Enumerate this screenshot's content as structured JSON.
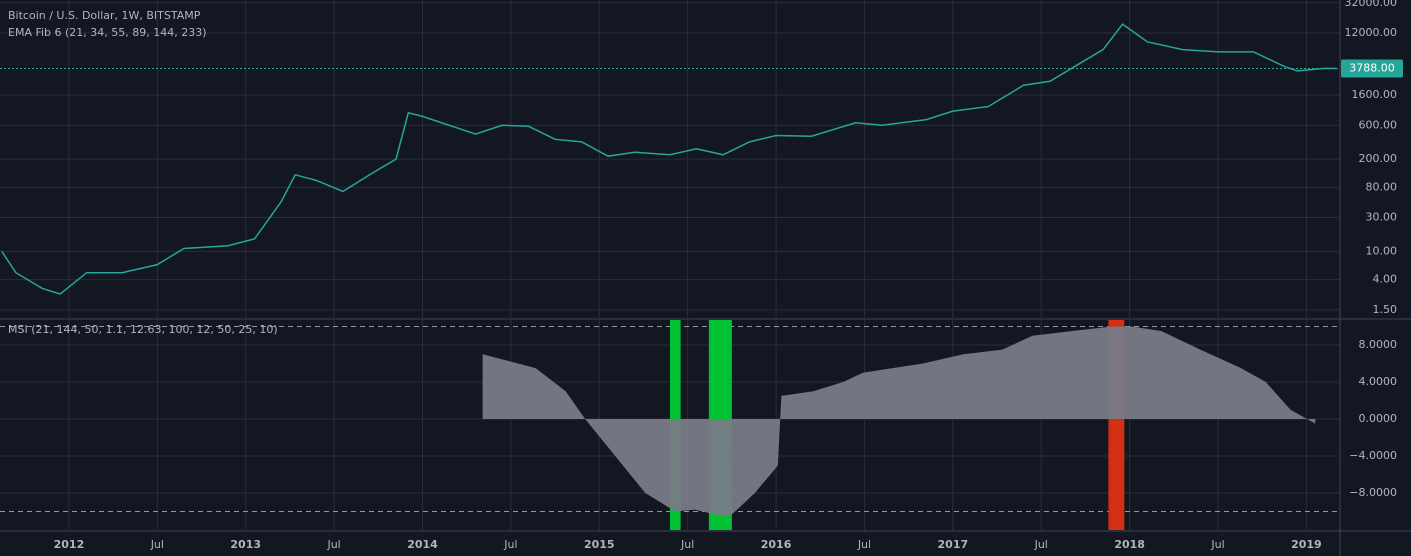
{
  "chart_data": [
    {
      "type": "line",
      "title": "Bitcoin / U.S. Dollar, 1W, BITSTAMP",
      "subtitle": "EMA Fib 6 (21, 34, 55, 89, 144, 233)",
      "log_scale": true,
      "grid": true,
      "xlim": [
        2011.61,
        2019.19
      ],
      "ylim": [
        1.15,
        35000
      ],
      "yticks": [
        {
          "value": 1.5,
          "label": "1.50"
        },
        {
          "value": 4,
          "label": "4.00"
        },
        {
          "value": 10,
          "label": "10.00"
        },
        {
          "value": 30,
          "label": "30.00"
        },
        {
          "value": 80,
          "label": "80.00"
        },
        {
          "value": 200,
          "label": "200.00"
        },
        {
          "value": 600,
          "label": "600.00"
        },
        {
          "value": 1600,
          "label": "1600.00"
        },
        {
          "value": 12000,
          "label": "12000.00"
        },
        {
          "value": 32000,
          "label": "32000.00"
        }
      ],
      "last_price": {
        "value": 3788,
        "label": "3788.00",
        "color": "#26a69a"
      },
      "series": [
        {
          "color": "#26a69a",
          "x": [
            2011.62,
            2011.7,
            2011.85,
            2011.95,
            2012.1,
            2012.3,
            2012.5,
            2012.65,
            2012.9,
            2013.05,
            2013.2,
            2013.28,
            2013.4,
            2013.55,
            2013.7,
            2013.85,
            2013.92,
            2014.0,
            2014.15,
            2014.3,
            2014.45,
            2014.6,
            2014.75,
            2014.9,
            2015.05,
            2015.2,
            2015.4,
            2015.55,
            2015.7,
            2015.85,
            2016.0,
            2016.2,
            2016.45,
            2016.6,
            2016.85,
            2017.0,
            2017.2,
            2017.4,
            2017.55,
            2017.7,
            2017.85,
            2017.96,
            2018.1,
            2018.3,
            2018.5,
            2018.7,
            2018.88,
            2018.95,
            2019.1,
            2019.17
          ],
          "values": [
            10,
            5,
            3,
            2.5,
            5,
            5,
            6.5,
            11,
            12,
            15,
            50,
            120,
            100,
            70,
            120,
            200,
            900,
            800,
            600,
            450,
            600,
            580,
            380,
            350,
            220,
            250,
            230,
            280,
            230,
            350,
            430,
            420,
            650,
            600,
            720,
            950,
            1100,
            2200,
            2500,
            4200,
            7000,
            16000,
            9000,
            7000,
            6500,
            6500,
            4000,
            3500,
            3800,
            3788
          ]
        }
      ]
    },
    {
      "type": "area",
      "title": "MSI (21, 144, 50, 1.1, 12.63, 100, 12, 50, 25, 10)",
      "grid": true,
      "xlim": [
        2011.61,
        2019.19
      ],
      "ylim": [
        -12,
        10.7
      ],
      "xticks": [
        2012,
        {
          "value": 2012.5,
          "label": "Jul"
        },
        2013,
        {
          "value": 2013.5,
          "label": "Jul"
        },
        2014,
        {
          "value": 2014.5,
          "label": "Jul"
        },
        2015,
        {
          "value": 2015.5,
          "label": "Jul"
        },
        2016,
        {
          "value": 2016.5,
          "label": "Jul"
        },
        2017,
        {
          "value": 2017.5,
          "label": "Jul"
        },
        2018,
        {
          "value": 2018.5,
          "label": "Jul"
        },
        2019
      ],
      "yticks": [
        {
          "value": 8,
          "label": "8.0000"
        },
        {
          "value": 4,
          "label": "4.0000"
        },
        {
          "value": 0,
          "label": "0.0000"
        },
        {
          "value": -4,
          "label": "−4.0000"
        },
        {
          "value": -8,
          "label": "−8.0000"
        }
      ],
      "levels": [
        10,
        -10
      ],
      "highlights": [
        {
          "start": 2015.4,
          "end": 2015.46,
          "color": "#00c234"
        },
        {
          "start": 2015.62,
          "end": 2015.75,
          "color": "#00c234"
        },
        {
          "start": 2017.88,
          "end": 2017.97,
          "color": "#d32f12"
        }
      ],
      "series": [
        {
          "color": "#787b86",
          "x": [
            2014.34,
            2014.64,
            2014.81,
            2014.92,
            2015.09,
            2015.26,
            2015.43,
            2015.54,
            2015.65,
            2015.74,
            2015.88,
            2015.99,
            2016.01,
            2016.03,
            2016.21,
            2016.38,
            2016.49,
            2016.66,
            2016.83,
            2017.06,
            2017.28,
            2017.45,
            2017.67,
            2017.9,
            2018.01,
            2018.18,
            2018.4,
            2018.63,
            2018.77,
            2018.91,
            2019.05
          ],
          "values": [
            7,
            5.5,
            3,
            0,
            -4,
            -8,
            -10,
            -9.8,
            -10.3,
            -10.5,
            -8,
            -5.5,
            -5,
            2.5,
            3,
            4,
            5,
            5.5,
            6,
            7,
            7.5,
            9,
            9.5,
            10,
            10,
            9.5,
            7.5,
            5.5,
            4,
            1,
            -0.5
          ]
        }
      ]
    }
  ]
}
